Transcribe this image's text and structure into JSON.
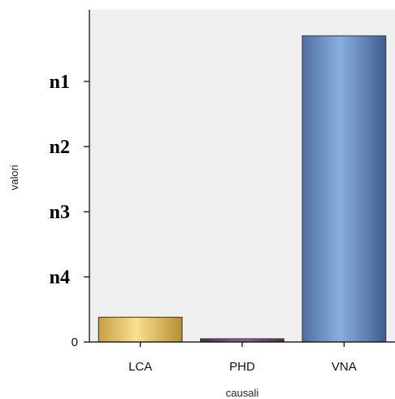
{
  "chart_data": {
    "type": "bar",
    "title": "",
    "xlabel": "causali",
    "ylabel": "valori",
    "categories": [
      "LCA",
      "PHD",
      "VNA"
    ],
    "values": [
      0.38,
      0.05,
      4.7
    ],
    "ylim": [
      0,
      5.1
    ],
    "y_ticks": [
      {
        "value": 0,
        "label": "0"
      },
      {
        "value": 1,
        "label": "n4"
      },
      {
        "value": 2,
        "label": "n3"
      },
      {
        "value": 3,
        "label": "n2"
      },
      {
        "value": 4,
        "label": "n1"
      }
    ],
    "grid": false,
    "legend": "none",
    "colors": {
      "plot_background": "#efefef",
      "LCA": "#e8c66a",
      "PHD": "#6b4a72",
      "VNA": "#6f93c7",
      "bar_outline": "#333333"
    }
  }
}
